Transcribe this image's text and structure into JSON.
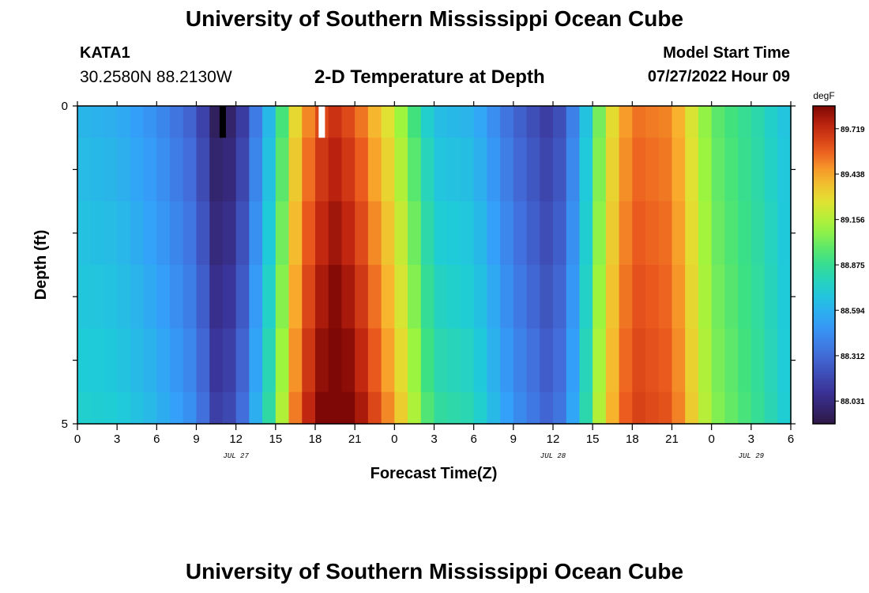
{
  "header": {
    "title": "University of Southern Mississippi Ocean Cube",
    "station_id": "KATA1",
    "station_coords": "30.2580N  88.2130W",
    "plot_title": "2-D Temperature at Depth",
    "model_start_label": "Model Start Time",
    "model_start_value": "07/27/2022 Hour 09"
  },
  "footer": {
    "title": "University of Southern Mississippi Ocean Cube"
  },
  "chart_data": {
    "type": "heatmap",
    "title": "2-D Temperature at Depth",
    "xlabel": "Forecast Time(Z)",
    "ylabel": "Depth (ft)",
    "x_tick_labels": [
      "0",
      "3",
      "6",
      "9",
      "12",
      "15",
      "18",
      "21",
      "0",
      "3",
      "6",
      "9",
      "12",
      "15",
      "18",
      "21",
      "0",
      "3",
      "6"
    ],
    "date_labels": [
      {
        "label": "JUL 27",
        "at_tick": 4
      },
      {
        "label": "JUL 28",
        "at_tick": 12
      },
      {
        "label": "JUL 29",
        "at_tick": 17
      }
    ],
    "y_tick_labels": [
      "0",
      "5"
    ],
    "ylim": [
      0,
      5
    ],
    "colorbar": {
      "unit": "degF",
      "ticks": [
        "89.719",
        "89.438",
        "89.156",
        "88.875",
        "88.594",
        "88.312",
        "88.031"
      ],
      "range": [
        87.89,
        89.86
      ]
    },
    "missing_markers": [
      {
        "hour": 11,
        "color": "#000000"
      },
      {
        "hour": 18.5,
        "color": "#ffffff"
      }
    ],
    "depth_layers": [
      {
        "depth": "0.0-0.5",
        "profile_offset": 0.0
      },
      {
        "depth": "0.5-1.5",
        "profile_offset": 0.05
      },
      {
        "depth": "1.5-2.5",
        "profile_offset": 0.1
      },
      {
        "depth": "2.5-3.5",
        "profile_offset": 0.15
      },
      {
        "depth": "3.5-4.5",
        "profile_offset": 0.2
      },
      {
        "depth": "4.5-5.0",
        "profile_offset": 0.25
      }
    ],
    "surface_profile": {
      "hours": [
        0,
        3,
        6,
        9,
        10.5,
        12,
        15,
        16.5,
        18,
        19.5,
        21,
        24,
        27,
        30,
        33,
        36,
        38,
        40,
        42,
        45,
        48,
        51,
        54
      ],
      "values": [
        88.62,
        88.58,
        88.45,
        88.25,
        87.95,
        88.0,
        88.75,
        89.3,
        89.6,
        89.7,
        89.6,
        89.2,
        88.65,
        88.6,
        88.3,
        88.1,
        88.5,
        89.2,
        89.55,
        89.5,
        89.0,
        88.85,
        88.65
      ]
    }
  }
}
